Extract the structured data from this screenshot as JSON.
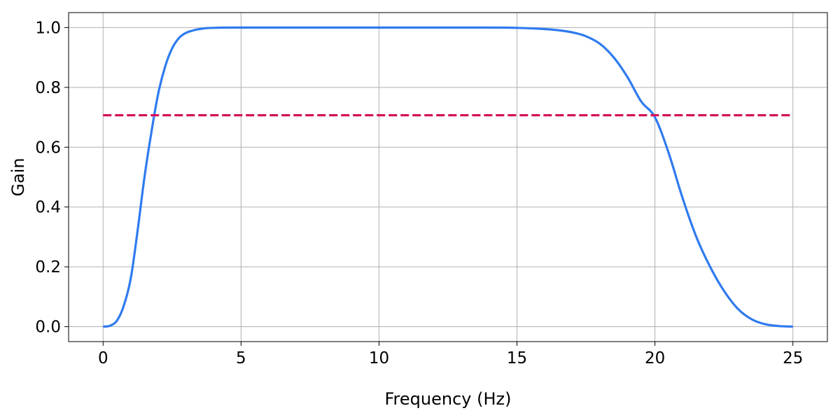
{
  "chart_data": {
    "type": "line",
    "title": "",
    "xlabel": "Frequency (Hz)",
    "ylabel": "Gain",
    "xlim": [
      -1.25,
      26.25
    ],
    "ylim": [
      -0.05,
      1.05
    ],
    "xticks": [
      0,
      5,
      10,
      15,
      20,
      25
    ],
    "yticks": [
      0.0,
      0.2,
      0.4,
      0.6,
      0.8,
      1.0
    ],
    "xtick_labels": [
      "0",
      "5",
      "10",
      "15",
      "20",
      "25"
    ],
    "ytick_labels": [
      "0.0",
      "0.2",
      "0.4",
      "0.6",
      "0.8",
      "1.0"
    ],
    "grid": true,
    "legend": "none",
    "series": [
      {
        "style": "solid",
        "color": "#2f7bef",
        "x": [
          0,
          0.25,
          0.5,
          0.75,
          1.0,
          1.25,
          1.5,
          1.75,
          2.0,
          2.25,
          2.5,
          2.75,
          3.0,
          3.25,
          3.5,
          3.75,
          4.0,
          4.5,
          5.0,
          6.0,
          8.0,
          10.0,
          12.0,
          14.0,
          15.0,
          16.0,
          16.5,
          17.0,
          17.5,
          18.0,
          18.5,
          19.0,
          19.5,
          20.0,
          20.5,
          21.0,
          21.5,
          22.0,
          22.5,
          23.0,
          23.5,
          24.0,
          24.5,
          25.0
        ],
        "y": [
          0.0,
          0.003,
          0.02,
          0.07,
          0.16,
          0.32,
          0.5,
          0.65,
          0.78,
          0.87,
          0.93,
          0.965,
          0.982,
          0.99,
          0.995,
          0.998,
          0.999,
          1.0,
          1.0,
          1.0,
          1.0,
          1.0,
          1.0,
          1.0,
          0.999,
          0.995,
          0.991,
          0.984,
          0.971,
          0.946,
          0.901,
          0.835,
          0.753,
          0.7,
          0.58,
          0.43,
          0.3,
          0.2,
          0.12,
          0.06,
          0.025,
          0.008,
          0.002,
          0.0
        ]
      },
      {
        "style": "dashed",
        "color": "#d4145a",
        "x": [
          0,
          25
        ],
        "y": [
          0.707,
          0.707
        ]
      }
    ]
  }
}
